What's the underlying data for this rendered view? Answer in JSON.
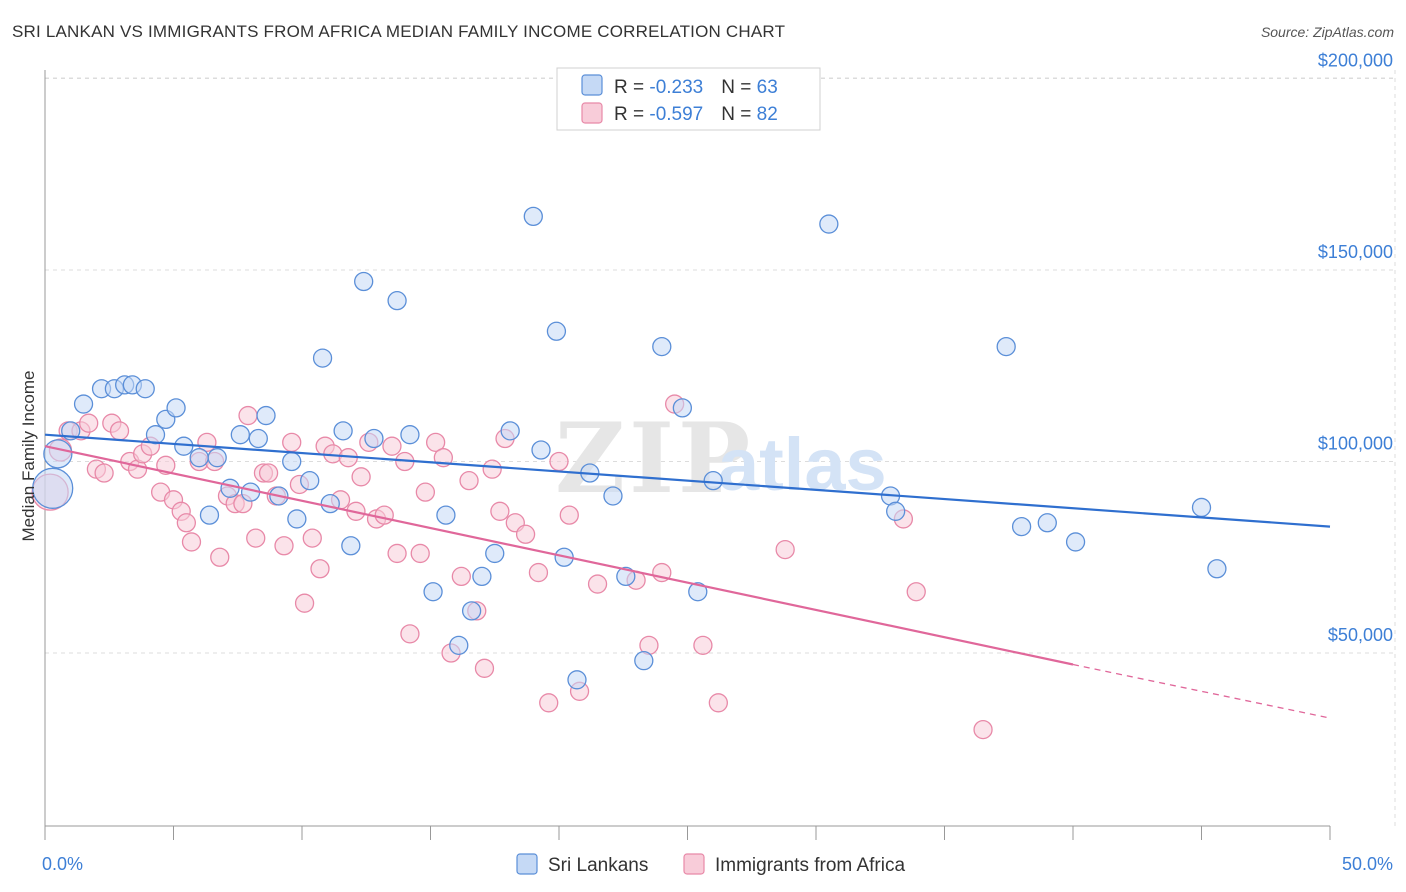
{
  "title": "SRI LANKAN VS IMMIGRANTS FROM AFRICA MEDIAN FAMILY INCOME CORRELATION CHART",
  "source": "Source: ZipAtlas.com",
  "watermark": {
    "zip": "ZIP",
    "atlas": "atlas"
  },
  "colors": {
    "blue": "#5b8fd8",
    "blue_fill": "#c5d9f5",
    "blue_line": "#2f6fcf",
    "pink": "#e889a8",
    "pink_fill": "#f8ccd9",
    "pink_line": "#e0679a",
    "grid": "#dcdcdc",
    "tick_text": "#3d7fd6"
  },
  "legend": {
    "rows": [
      {
        "r_label": "R = ",
        "r_value": "-0.233",
        "n_label": "N = ",
        "n_value": "63"
      },
      {
        "r_label": "R = ",
        "r_value": "-0.597",
        "n_label": "N = ",
        "n_value": "82"
      }
    ]
  },
  "bottom_legend": [
    "Sri Lankans",
    "Immigrants from Africa"
  ],
  "chart_data": {
    "type": "scatter",
    "title": "SRI LANKAN VS IMMIGRANTS FROM AFRICA MEDIAN FAMILY INCOME CORRELATION CHART",
    "ylabel": "Median Family Income",
    "xlabel": "",
    "xlim": [
      0,
      50
    ],
    "ylim": [
      5000,
      210000
    ],
    "x_tick_labels": [
      "0.0%",
      "50.0%"
    ],
    "y_ticks": [
      50000,
      100000,
      150000,
      200000
    ],
    "y_tick_labels": [
      "$50,000",
      "$100,000",
      "$150,000",
      "$200,000"
    ],
    "grid": true,
    "legend_placement": "top-center",
    "series": [
      {
        "name": "Sri Lankans",
        "r": -0.233,
        "n": 63,
        "trend": {
          "x": [
            0,
            50
          ],
          "y": [
            107000,
            83000
          ]
        },
        "points": [
          [
            0.3,
            93000,
            20
          ],
          [
            0.5,
            102000,
            14
          ],
          [
            1.0,
            108000,
            9
          ],
          [
            1.5,
            115000,
            9
          ],
          [
            2.2,
            119000,
            9
          ],
          [
            2.7,
            119000,
            9
          ],
          [
            3.1,
            120000,
            9
          ],
          [
            3.4,
            120000,
            9
          ],
          [
            3.9,
            119000,
            9
          ],
          [
            4.3,
            107000,
            9
          ],
          [
            4.7,
            111000,
            9
          ],
          [
            5.1,
            114000,
            9
          ],
          [
            5.4,
            104000,
            9
          ],
          [
            6.0,
            101000,
            9
          ],
          [
            6.4,
            86000,
            9
          ],
          [
            6.7,
            101000,
            9
          ],
          [
            7.2,
            93000,
            9
          ],
          [
            7.6,
            107000,
            9
          ],
          [
            8.0,
            92000,
            9
          ],
          [
            8.3,
            106000,
            9
          ],
          [
            8.6,
            112000,
            9
          ],
          [
            9.1,
            91000,
            9
          ],
          [
            9.6,
            100000,
            9
          ],
          [
            9.8,
            85000,
            9
          ],
          [
            10.3,
            95000,
            9
          ],
          [
            10.8,
            127000,
            9
          ],
          [
            11.1,
            89000,
            9
          ],
          [
            11.6,
            108000,
            9
          ],
          [
            11.9,
            78000,
            9
          ],
          [
            12.4,
            147000,
            9
          ],
          [
            12.8,
            106000,
            9
          ],
          [
            13.7,
            142000,
            9
          ],
          [
            14.2,
            107000,
            9
          ],
          [
            15.1,
            66000,
            9
          ],
          [
            15.6,
            86000,
            9
          ],
          [
            16.1,
            52000,
            9
          ],
          [
            16.6,
            61000,
            9
          ],
          [
            17.0,
            70000,
            9
          ],
          [
            17.5,
            76000,
            9
          ],
          [
            18.1,
            108000,
            9
          ],
          [
            19.0,
            164000,
            9
          ],
          [
            19.3,
            103000,
            9
          ],
          [
            19.9,
            134000,
            9
          ],
          [
            20.2,
            75000,
            9
          ],
          [
            20.7,
            43000,
            9
          ],
          [
            21.2,
            97000,
            9
          ],
          [
            22.1,
            91000,
            9
          ],
          [
            22.6,
            70000,
            9
          ],
          [
            23.3,
            48000,
            9
          ],
          [
            24.0,
            130000,
            9
          ],
          [
            24.8,
            114000,
            9
          ],
          [
            25.4,
            66000,
            9
          ],
          [
            26.0,
            95000,
            9
          ],
          [
            30.5,
            162000,
            9
          ],
          [
            32.9,
            91000,
            9
          ],
          [
            33.1,
            87000,
            9
          ],
          [
            37.4,
            130000,
            9
          ],
          [
            38.0,
            83000,
            9
          ],
          [
            39.0,
            84000,
            9
          ],
          [
            40.1,
            79000,
            9
          ],
          [
            45.0,
            88000,
            9
          ],
          [
            45.6,
            72000,
            9
          ]
        ]
      },
      {
        "name": "Immigrants from Africa",
        "r": -0.597,
        "n": 82,
        "trend": {
          "x": [
            0,
            40
          ],
          "y": [
            104000,
            47000
          ],
          "dashed_to": {
            "x": 50,
            "y": 33000
          }
        },
        "points": [
          [
            0.2,
            92000,
            18
          ],
          [
            0.6,
            103000,
            11
          ],
          [
            0.9,
            108000,
            9
          ],
          [
            1.4,
            108000,
            9
          ],
          [
            1.7,
            110000,
            9
          ],
          [
            2.0,
            98000,
            9
          ],
          [
            2.3,
            97000,
            9
          ],
          [
            2.6,
            110000,
            9
          ],
          [
            2.9,
            108000,
            9
          ],
          [
            3.3,
            100000,
            9
          ],
          [
            3.6,
            98000,
            9
          ],
          [
            3.8,
            102000,
            9
          ],
          [
            4.1,
            104000,
            9
          ],
          [
            4.5,
            92000,
            9
          ],
          [
            4.7,
            99000,
            9
          ],
          [
            5.0,
            90000,
            9
          ],
          [
            5.3,
            87000,
            9
          ],
          [
            5.5,
            84000,
            9
          ],
          [
            5.7,
            79000,
            9
          ],
          [
            6.0,
            100000,
            9
          ],
          [
            6.3,
            105000,
            9
          ],
          [
            6.6,
            100000,
            9
          ],
          [
            6.8,
            75000,
            9
          ],
          [
            7.1,
            91000,
            9
          ],
          [
            7.4,
            89000,
            9
          ],
          [
            7.7,
            89000,
            9
          ],
          [
            7.9,
            112000,
            9
          ],
          [
            8.2,
            80000,
            9
          ],
          [
            8.5,
            97000,
            9
          ],
          [
            8.7,
            97000,
            9
          ],
          [
            9.0,
            91000,
            9
          ],
          [
            9.3,
            78000,
            9
          ],
          [
            9.6,
            105000,
            9
          ],
          [
            9.9,
            94000,
            9
          ],
          [
            10.1,
            63000,
            9
          ],
          [
            10.4,
            80000,
            9
          ],
          [
            10.7,
            72000,
            9
          ],
          [
            10.9,
            104000,
            9
          ],
          [
            11.2,
            102000,
            9
          ],
          [
            11.5,
            90000,
            9
          ],
          [
            11.8,
            101000,
            9
          ],
          [
            12.1,
            87000,
            9
          ],
          [
            12.3,
            96000,
            9
          ],
          [
            12.6,
            105000,
            9
          ],
          [
            12.9,
            85000,
            9
          ],
          [
            13.2,
            86000,
            9
          ],
          [
            13.5,
            104000,
            9
          ],
          [
            13.7,
            76000,
            9
          ],
          [
            14.0,
            100000,
            9
          ],
          [
            14.2,
            55000,
            9
          ],
          [
            14.6,
            76000,
            9
          ],
          [
            14.8,
            92000,
            9
          ],
          [
            15.2,
            105000,
            9
          ],
          [
            15.5,
            101000,
            9
          ],
          [
            15.8,
            50000,
            9
          ],
          [
            16.2,
            70000,
            9
          ],
          [
            16.5,
            95000,
            9
          ],
          [
            16.8,
            61000,
            9
          ],
          [
            17.1,
            46000,
            9
          ],
          [
            17.4,
            98000,
            9
          ],
          [
            17.7,
            87000,
            9
          ],
          [
            17.9,
            106000,
            9
          ],
          [
            18.3,
            84000,
            9
          ],
          [
            18.7,
            81000,
            9
          ],
          [
            19.2,
            71000,
            9
          ],
          [
            19.6,
            37000,
            9
          ],
          [
            20.0,
            100000,
            9
          ],
          [
            20.4,
            86000,
            9
          ],
          [
            20.8,
            40000,
            9
          ],
          [
            21.5,
            68000,
            9
          ],
          [
            23.0,
            69000,
            9
          ],
          [
            23.5,
            52000,
            9
          ],
          [
            24.0,
            71000,
            9
          ],
          [
            24.5,
            115000,
            9
          ],
          [
            25.6,
            52000,
            9
          ],
          [
            26.2,
            37000,
            9
          ],
          [
            28.8,
            77000,
            9
          ],
          [
            33.4,
            85000,
            9
          ],
          [
            33.9,
            66000,
            9
          ],
          [
            36.5,
            30000,
            9
          ]
        ]
      }
    ]
  }
}
